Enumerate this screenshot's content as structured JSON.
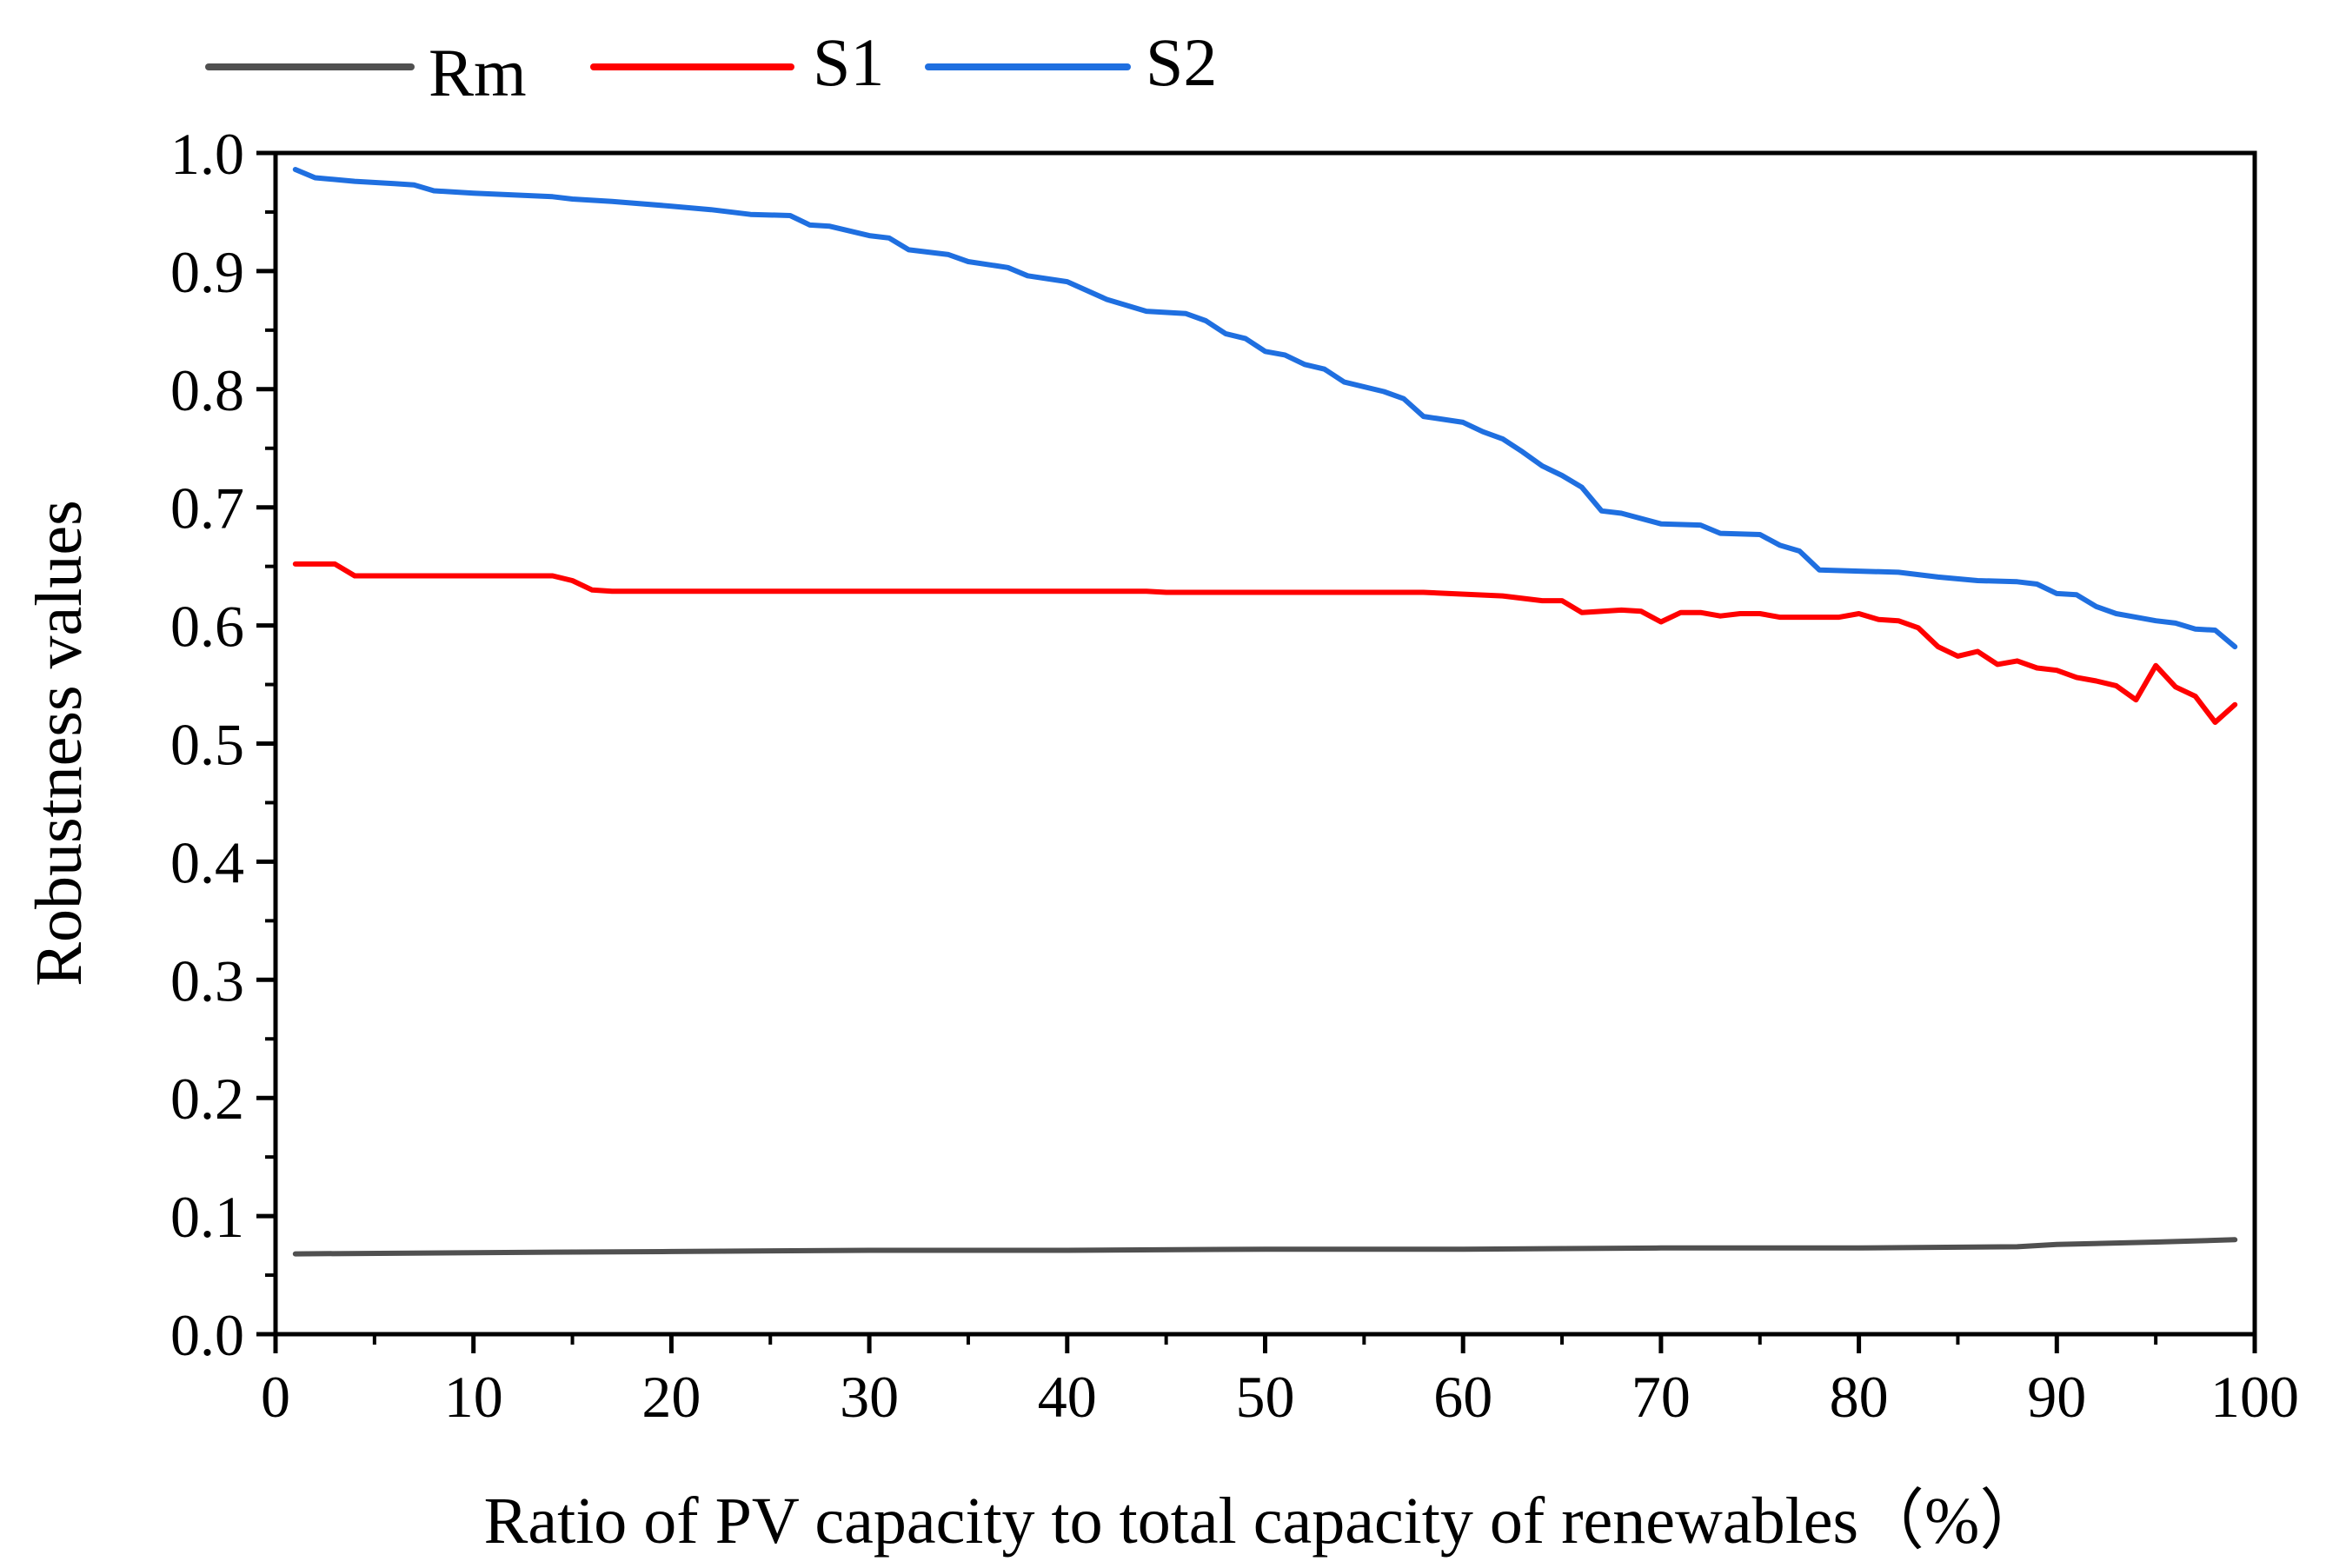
{
  "chart_data": {
    "type": "line",
    "title": "",
    "xlabel": "Ratio of PV capacity to total capacity of renewables（%）",
    "ylabel": "Robustness values",
    "xlim": [
      0,
      100
    ],
    "ylim": [
      0.0,
      1.0
    ],
    "x_ticks": [
      "0",
      "10",
      "20",
      "30",
      "40",
      "50",
      "60",
      "70",
      "80",
      "90",
      "100"
    ],
    "y_ticks": [
      "0.0",
      "0.1",
      "0.2",
      "0.3",
      "0.4",
      "0.5",
      "0.6",
      "0.7",
      "0.8",
      "0.9",
      "1.0"
    ],
    "grid": false,
    "legend_position": "top-left, outside above plot",
    "series": [
      {
        "name": "Rm",
        "color": "#505050",
        "x": [
          1,
          10,
          20,
          30,
          40,
          50,
          60,
          70,
          80,
          88,
          90,
          95,
          99
        ],
        "y": [
          0.068,
          0.069,
          0.07,
          0.071,
          0.071,
          0.072,
          0.072,
          0.073,
          0.073,
          0.074,
          0.076,
          0.078,
          0.08
        ]
      },
      {
        "name": "S1",
        "color": "#ff0000",
        "x": [
          1,
          3,
          4,
          14,
          15,
          16,
          17,
          30,
          40,
          44,
          45,
          48,
          50,
          58,
          62,
          64,
          65,
          66,
          68,
          69,
          70,
          71,
          72,
          73,
          74,
          75,
          76,
          77,
          78,
          79,
          80,
          81,
          82,
          83,
          84,
          85,
          86,
          87,
          88,
          89,
          90,
          91,
          92,
          93,
          94,
          95,
          96,
          97,
          98,
          99
        ],
        "y": [
          0.652,
          0.652,
          0.642,
          0.642,
          0.638,
          0.63,
          0.629,
          0.629,
          0.629,
          0.629,
          0.628,
          0.628,
          0.628,
          0.628,
          0.625,
          0.621,
          0.621,
          0.611,
          0.613,
          0.612,
          0.603,
          0.611,
          0.611,
          0.608,
          0.61,
          0.61,
          0.607,
          0.607,
          0.607,
          0.607,
          0.61,
          0.605,
          0.604,
          0.598,
          0.582,
          0.574,
          0.578,
          0.567,
          0.57,
          0.564,
          0.562,
          0.556,
          0.553,
          0.549,
          0.537,
          0.566,
          0.548,
          0.54,
          0.518,
          0.533
        ]
      },
      {
        "name": "S2",
        "color": "#1f6fe0",
        "x": [
          1,
          2,
          4,
          6,
          7,
          8,
          10,
          14,
          15,
          17,
          20,
          22,
          24,
          26,
          27,
          28,
          30,
          31,
          32,
          34,
          35,
          37,
          38,
          40,
          42,
          44,
          46,
          47,
          48,
          49,
          50,
          51,
          52,
          53,
          54,
          56,
          57,
          58,
          60,
          61,
          62,
          63,
          64,
          65,
          66,
          67,
          68,
          70,
          72,
          73,
          75,
          76,
          77,
          78,
          80,
          82,
          84,
          86,
          88,
          89,
          90,
          91,
          92,
          93,
          94,
          95,
          96,
          97,
          98,
          99
        ],
        "y": [
          0.986,
          0.979,
          0.976,
          0.974,
          0.973,
          0.968,
          0.966,
          0.963,
          0.961,
          0.959,
          0.955,
          0.952,
          0.948,
          0.947,
          0.939,
          0.938,
          0.93,
          0.928,
          0.918,
          0.914,
          0.908,
          0.903,
          0.896,
          0.891,
          0.876,
          0.866,
          0.864,
          0.858,
          0.847,
          0.843,
          0.832,
          0.829,
          0.821,
          0.817,
          0.806,
          0.798,
          0.792,
          0.777,
          0.772,
          0.764,
          0.758,
          0.747,
          0.735,
          0.727,
          0.717,
          0.697,
          0.695,
          0.686,
          0.685,
          0.678,
          0.677,
          0.668,
          0.663,
          0.647,
          0.646,
          0.645,
          0.641,
          0.638,
          0.637,
          0.635,
          0.627,
          0.626,
          0.616,
          0.61,
          0.607,
          0.604,
          0.602,
          0.597,
          0.596,
          0.582
        ]
      }
    ]
  }
}
